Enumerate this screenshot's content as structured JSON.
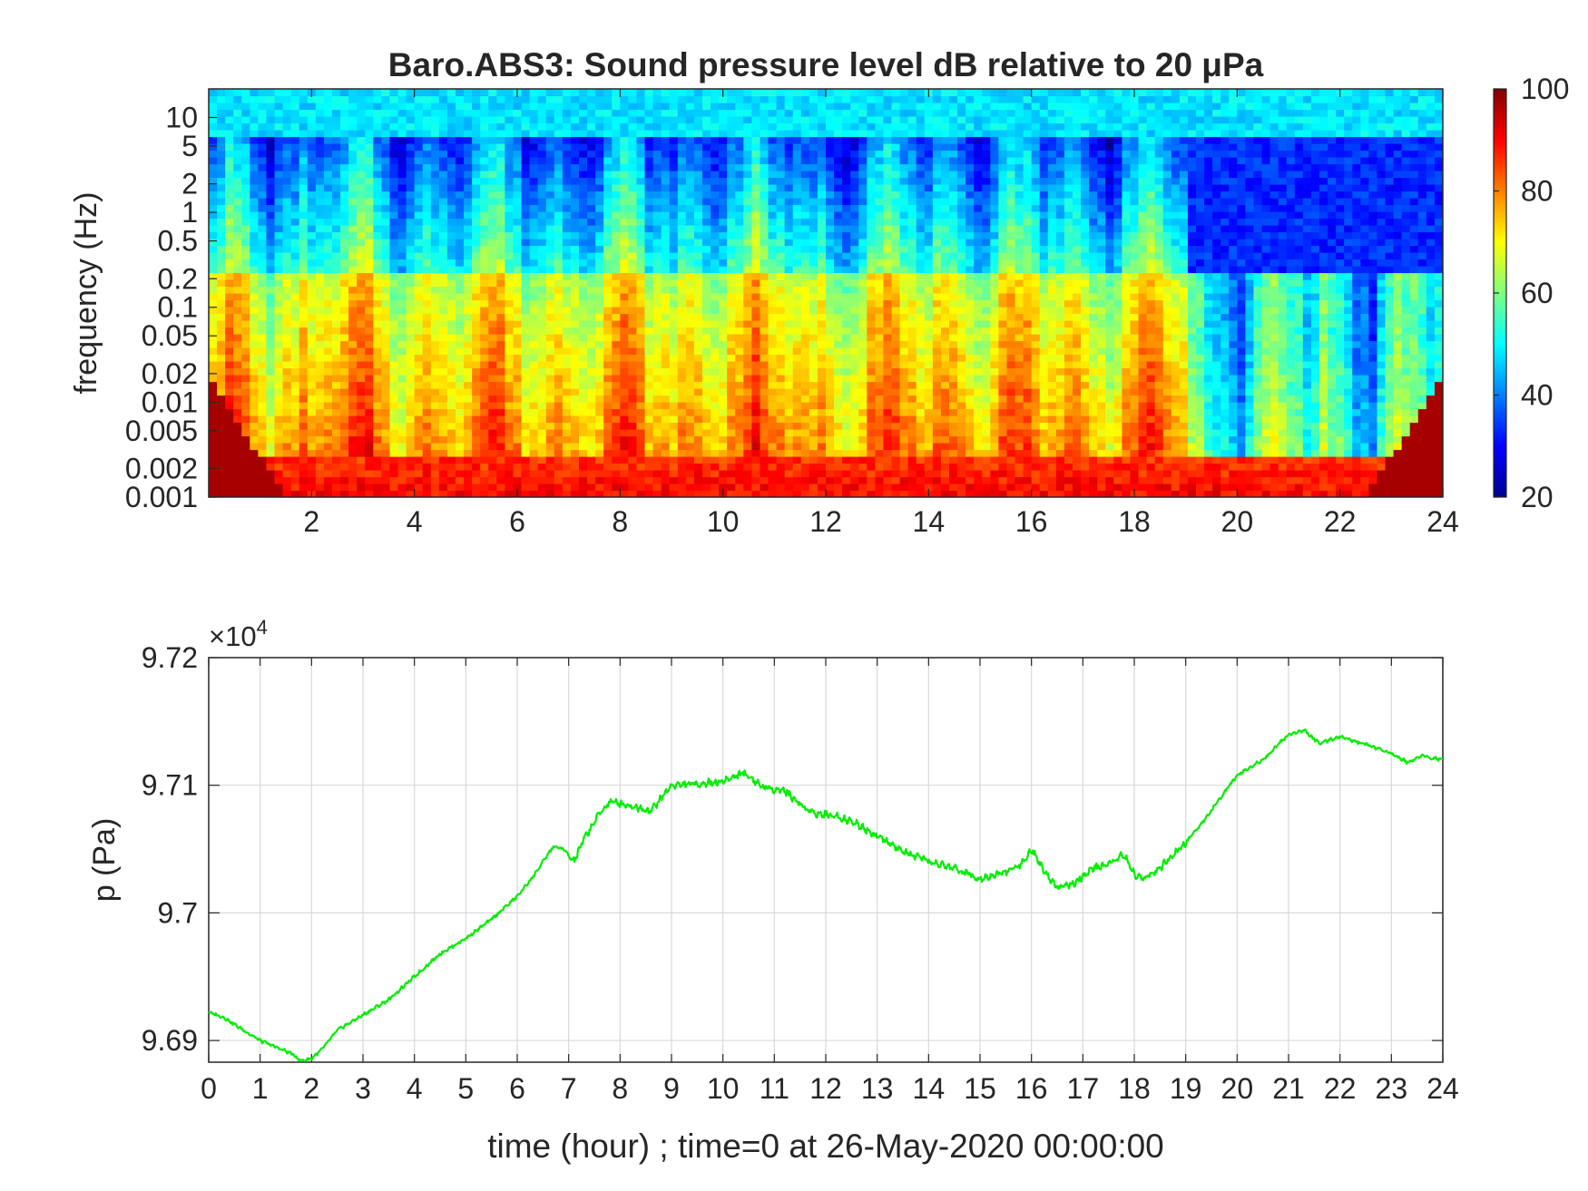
{
  "chart_data": [
    {
      "type": "heatmap",
      "title": "Baro.ABS3: Sound pressure level dB relative to 20 μPa",
      "xlabel": "",
      "ylabel": "frequency (Hz)",
      "x_range_hours": [
        0,
        24
      ],
      "x_ticks": [
        "2",
        "4",
        "6",
        "8",
        "10",
        "12",
        "14",
        "16",
        "18",
        "20",
        "22",
        "24"
      ],
      "y_scale": "log",
      "y_range_hz": [
        0.001,
        20
      ],
      "y_ticks": [
        "0.001",
        "0.002",
        "0.005",
        "0.01",
        "0.02",
        "0.05",
        "0.1",
        "0.2",
        "0.5",
        "1",
        "2",
        "5",
        "10"
      ],
      "colormap": "jet",
      "colorbar": {
        "range_db": [
          20,
          100
        ],
        "ticks": [
          "20",
          "40",
          "60",
          "80",
          "100"
        ]
      },
      "grid": false,
      "description_of_levels": {
        "low_frequency_band_db": 90,
        "mid_band_hours_0_19_db": 80,
        "mid_band_hours_19_24_db": 50,
        "high_frequency_band_db": 45
      }
    },
    {
      "type": "line",
      "title": "",
      "xlabel": "time (hour) ; time=0 at 26-May-2020 00:00:00",
      "ylabel": "p (Pa)",
      "exponent_label": "×10",
      "exponent_power": "4",
      "xlim": [
        0,
        24
      ],
      "ylim": [
        9.6883,
        9.72
      ],
      "x_ticks": [
        "0",
        "1",
        "2",
        "3",
        "4",
        "5",
        "6",
        "7",
        "8",
        "9",
        "10",
        "11",
        "12",
        "13",
        "14",
        "15",
        "16",
        "17",
        "18",
        "19",
        "20",
        "21",
        "22",
        "23",
        "24"
      ],
      "y_ticks": [
        "9.69",
        "9.7",
        "9.71",
        "9.72"
      ],
      "grid": true,
      "series": [
        {
          "color": "#00ee00",
          "x": [
            0,
            0.3,
            0.6,
            1.0,
            1.3,
            1.6,
            1.8,
            2.0,
            2.2,
            2.5,
            3.0,
            3.5,
            4.0,
            4.5,
            5.0,
            5.5,
            6.0,
            6.3,
            6.7,
            6.9,
            7.1,
            7.3,
            7.6,
            7.8,
            8.0,
            8.3,
            8.6,
            9.0,
            9.5,
            10.0,
            10.4,
            10.8,
            11.2,
            11.5,
            11.8,
            12.2,
            12.6,
            13.0,
            13.5,
            14.0,
            14.5,
            15.0,
            15.5,
            15.8,
            16.0,
            16.3,
            16.5,
            16.8,
            17.2,
            17.5,
            17.8,
            18.0,
            18.2,
            18.5,
            19.0,
            19.5,
            20.0,
            20.5,
            21.0,
            21.3,
            21.6,
            22.0,
            22.5,
            23.0,
            23.3,
            23.6,
            24.0
          ],
          "y": [
            9.6922,
            9.6918,
            9.691,
            9.69,
            9.6895,
            9.689,
            9.6884,
            9.6886,
            9.6893,
            9.6908,
            9.692,
            9.6932,
            9.695,
            9.6968,
            9.698,
            9.6995,
            9.7013,
            9.7028,
            9.7052,
            9.705,
            9.704,
            9.7058,
            9.7078,
            9.7087,
            9.7086,
            9.7083,
            9.708,
            9.71,
            9.7101,
            9.7103,
            9.711,
            9.7098,
            9.7096,
            9.7085,
            9.7078,
            9.7076,
            9.707,
            9.706,
            9.7048,
            9.704,
            9.7035,
            9.7027,
            9.7032,
            9.7038,
            9.705,
            9.703,
            9.702,
            9.7022,
            9.7035,
            9.7038,
            9.7046,
            9.703,
            9.7027,
            9.7035,
            9.7055,
            9.708,
            9.7108,
            9.712,
            9.714,
            9.7143,
            9.7133,
            9.7138,
            9.7132,
            9.7125,
            9.7118,
            9.7123,
            9.712
          ]
        }
      ]
    }
  ]
}
